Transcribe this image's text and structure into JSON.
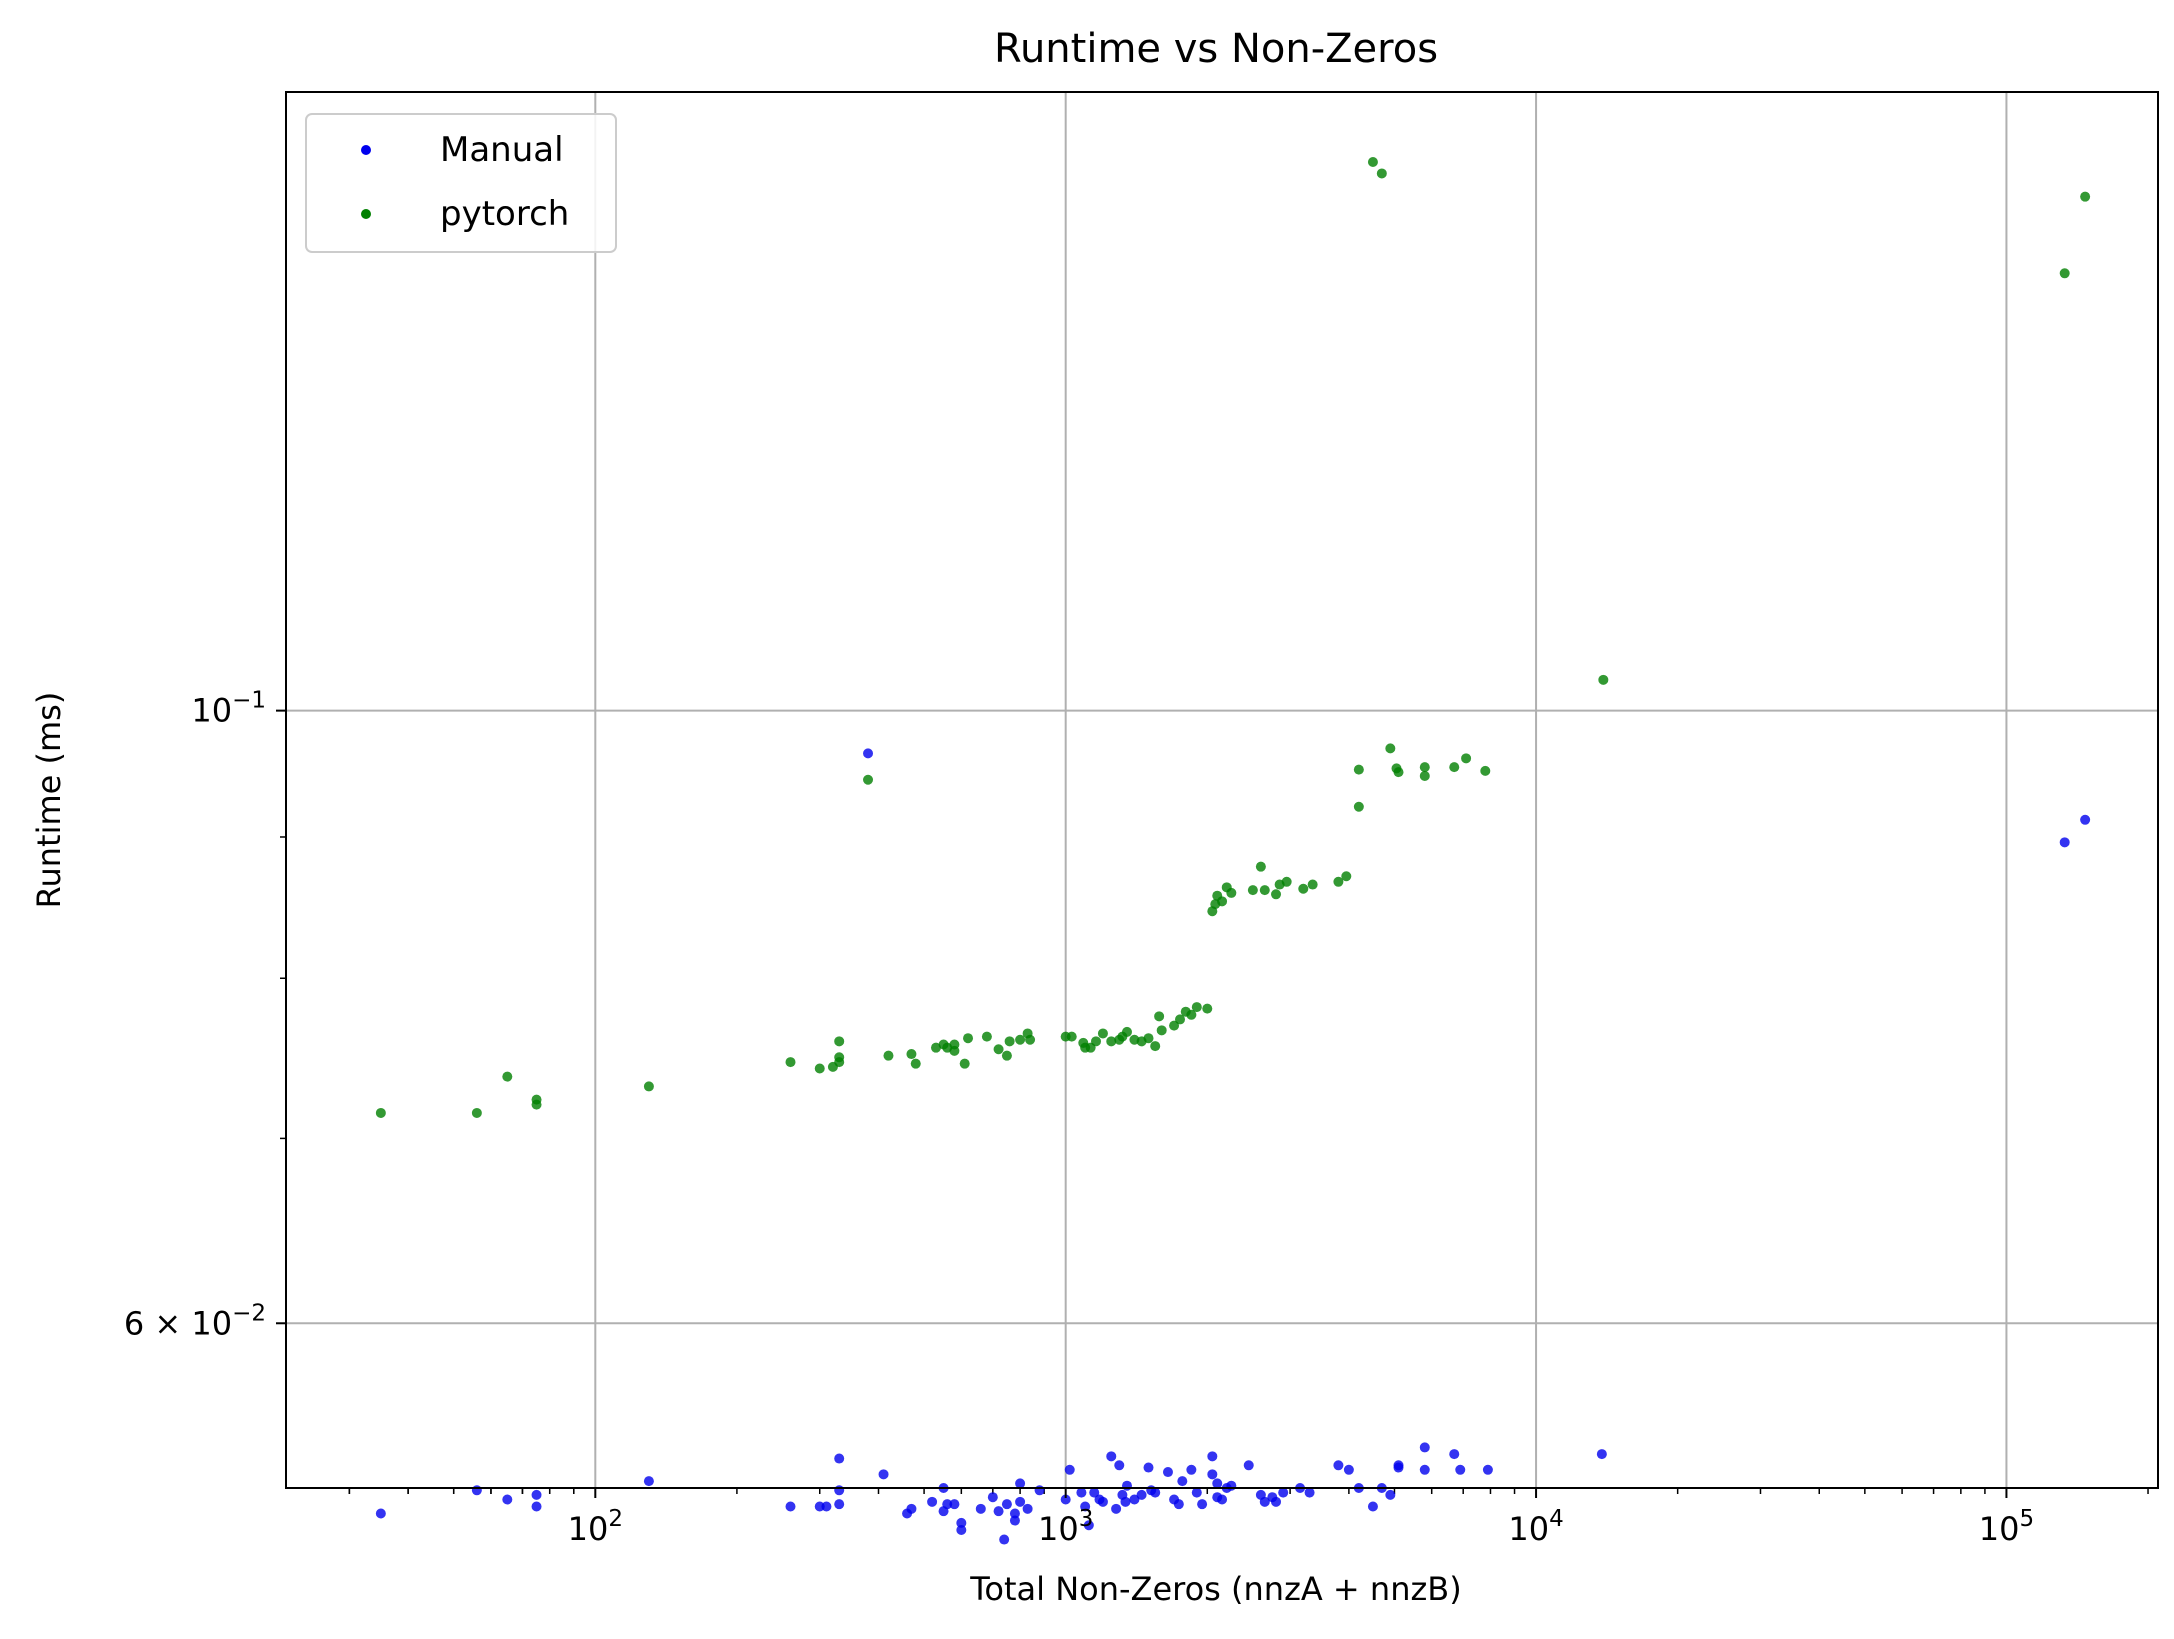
{
  "chart_data": {
    "type": "scatter",
    "title": "Runtime vs Non-Zeros",
    "xlabel": "Total Non-Zeros (nnzA + nnzB)",
    "ylabel": "Runtime (ms)",
    "xscale": "log",
    "yscale": "log",
    "xlim": [
      22,
      210000
    ],
    "ylim": [
      0.0523,
      0.1675
    ],
    "x_ticks": [
      {
        "value": 100,
        "base": "10",
        "exp": "2"
      },
      {
        "value": 1000,
        "base": "10",
        "exp": "3"
      },
      {
        "value": 10000,
        "base": "10",
        "exp": "4"
      },
      {
        "value": 100000,
        "base": "10",
        "exp": "5"
      }
    ],
    "y_ticks": [
      {
        "value": 0.1,
        "mant": "",
        "base": "10",
        "exp": "−1"
      },
      {
        "value": 0.06,
        "mant": "6 × ",
        "base": "10",
        "exp": "−2"
      }
    ],
    "grid": true,
    "legend_position": "upper-left",
    "series": [
      {
        "name": "Manual",
        "color": "#0000ee",
        "points": [
          [
            35,
            0.0512
          ],
          [
            56,
            0.0522
          ],
          [
            65,
            0.0518
          ],
          [
            75,
            0.052
          ],
          [
            75,
            0.0515
          ],
          [
            130,
            0.0526
          ],
          [
            260,
            0.0515
          ],
          [
            300,
            0.0515
          ],
          [
            310,
            0.0515
          ],
          [
            330,
            0.0516
          ],
          [
            330,
            0.0522
          ],
          [
            330,
            0.0536
          ],
          [
            380,
            0.0965
          ],
          [
            410,
            0.0529
          ],
          [
            460,
            0.0512
          ],
          [
            470,
            0.0514
          ],
          [
            520,
            0.0517
          ],
          [
            550,
            0.0513
          ],
          [
            550,
            0.0523
          ],
          [
            560,
            0.0516
          ],
          [
            580,
            0.0516
          ],
          [
            600,
            0.0508
          ],
          [
            600,
            0.0505
          ],
          [
            660,
            0.0514
          ],
          [
            700,
            0.0519
          ],
          [
            720,
            0.0513
          ],
          [
            740,
            0.0501
          ],
          [
            750,
            0.0516
          ],
          [
            780,
            0.0509
          ],
          [
            780,
            0.0512
          ],
          [
            800,
            0.0525
          ],
          [
            800,
            0.0517
          ],
          [
            830,
            0.0514
          ],
          [
            880,
            0.0522
          ],
          [
            1000,
            0.0518
          ],
          [
            1020,
            0.0531
          ],
          [
            1080,
            0.0521
          ],
          [
            1100,
            0.0515
          ],
          [
            1120,
            0.0507
          ],
          [
            1150,
            0.0521
          ],
          [
            1180,
            0.0518
          ],
          [
            1200,
            0.0517
          ],
          [
            1250,
            0.0537
          ],
          [
            1280,
            0.0514
          ],
          [
            1300,
            0.0533
          ],
          [
            1320,
            0.052
          ],
          [
            1340,
            0.0517
          ],
          [
            1350,
            0.0524
          ],
          [
            1400,
            0.0518
          ],
          [
            1450,
            0.052
          ],
          [
            1500,
            0.0532
          ],
          [
            1520,
            0.0522
          ],
          [
            1550,
            0.0521
          ],
          [
            1650,
            0.053
          ],
          [
            1700,
            0.0518
          ],
          [
            1740,
            0.0516
          ],
          [
            1770,
            0.0526
          ],
          [
            1850,
            0.0531
          ],
          [
            1900,
            0.0521
          ],
          [
            1950,
            0.0516
          ],
          [
            2050,
            0.0537
          ],
          [
            2050,
            0.0529
          ],
          [
            2100,
            0.0525
          ],
          [
            2100,
            0.0519
          ],
          [
            2150,
            0.0518
          ],
          [
            2200,
            0.0523
          ],
          [
            2250,
            0.0524
          ],
          [
            2450,
            0.0533
          ],
          [
            2600,
            0.052
          ],
          [
            2650,
            0.0517
          ],
          [
            2750,
            0.0519
          ],
          [
            2800,
            0.0517
          ],
          [
            2900,
            0.0521
          ],
          [
            3150,
            0.0523
          ],
          [
            3300,
            0.0521
          ],
          [
            3800,
            0.0533
          ],
          [
            4000,
            0.0531
          ],
          [
            4200,
            0.0523
          ],
          [
            4500,
            0.0515
          ],
          [
            4700,
            0.0523
          ],
          [
            4900,
            0.052
          ],
          [
            5100,
            0.0533
          ],
          [
            5100,
            0.0532
          ],
          [
            5800,
            0.0541
          ],
          [
            5800,
            0.0531
          ],
          [
            6700,
            0.0538
          ],
          [
            6900,
            0.0531
          ],
          [
            7900,
            0.0531
          ],
          [
            13800,
            0.0538
          ],
          [
            133000,
            0.0896
          ],
          [
            147000,
            0.0913
          ]
        ]
      },
      {
        "name": "pytorch",
        "color": "#008000",
        "points": [
          [
            35,
            0.0715
          ],
          [
            56,
            0.0715
          ],
          [
            65,
            0.0737
          ],
          [
            75,
            0.0723
          ],
          [
            75,
            0.072
          ],
          [
            130,
            0.0731
          ],
          [
            260,
            0.0746
          ],
          [
            300,
            0.0742
          ],
          [
            320,
            0.0743
          ],
          [
            330,
            0.0759
          ],
          [
            330,
            0.0749
          ],
          [
            330,
            0.0746
          ],
          [
            380,
            0.0944
          ],
          [
            420,
            0.075
          ],
          [
            470,
            0.0751
          ],
          [
            480,
            0.0745
          ],
          [
            530,
            0.0755
          ],
          [
            550,
            0.0757
          ],
          [
            560,
            0.0755
          ],
          [
            580,
            0.0757
          ],
          [
            580,
            0.0753
          ],
          [
            610,
            0.0745
          ],
          [
            620,
            0.0761
          ],
          [
            680,
            0.0762
          ],
          [
            720,
            0.0754
          ],
          [
            750,
            0.075
          ],
          [
            760,
            0.0759
          ],
          [
            800,
            0.076
          ],
          [
            830,
            0.0764
          ],
          [
            840,
            0.076
          ],
          [
            1000,
            0.0762
          ],
          [
            1030,
            0.0762
          ],
          [
            1090,
            0.0758
          ],
          [
            1100,
            0.0755
          ],
          [
            1130,
            0.0755
          ],
          [
            1160,
            0.0759
          ],
          [
            1200,
            0.0764
          ],
          [
            1250,
            0.0759
          ],
          [
            1300,
            0.076
          ],
          [
            1320,
            0.0762
          ],
          [
            1350,
            0.0765
          ],
          [
            1400,
            0.076
          ],
          [
            1450,
            0.0759
          ],
          [
            1500,
            0.0761
          ],
          [
            1550,
            0.0756
          ],
          [
            1580,
            0.0775
          ],
          [
            1600,
            0.0766
          ],
          [
            1700,
            0.0769
          ],
          [
            1750,
            0.0773
          ],
          [
            1800,
            0.0778
          ],
          [
            1850,
            0.0776
          ],
          [
            1900,
            0.0781
          ],
          [
            2000,
            0.078
          ],
          [
            2050,
            0.0846
          ],
          [
            2080,
            0.0851
          ],
          [
            2100,
            0.0857
          ],
          [
            2150,
            0.0853
          ],
          [
            2200,
            0.0863
          ],
          [
            2250,
            0.0859
          ],
          [
            2500,
            0.0861
          ],
          [
            2600,
            0.0878
          ],
          [
            2650,
            0.0861
          ],
          [
            2800,
            0.0858
          ],
          [
            2850,
            0.0865
          ],
          [
            2950,
            0.0867
          ],
          [
            3200,
            0.0862
          ],
          [
            3350,
            0.0865
          ],
          [
            3800,
            0.0867
          ],
          [
            3950,
            0.0871
          ],
          [
            4200,
            0.0923
          ],
          [
            4200,
            0.0952
          ],
          [
            4500,
            0.158
          ],
          [
            4700,
            0.1565
          ],
          [
            4900,
            0.0969
          ],
          [
            5050,
            0.0953
          ],
          [
            5100,
            0.095
          ],
          [
            5800,
            0.0954
          ],
          [
            5800,
            0.0947
          ],
          [
            6700,
            0.0954
          ],
          [
            7100,
            0.0961
          ],
          [
            7800,
            0.0951
          ],
          [
            13900,
            0.1026
          ],
          [
            133000,
            0.144
          ],
          [
            147000,
            0.1535
          ]
        ]
      }
    ]
  }
}
